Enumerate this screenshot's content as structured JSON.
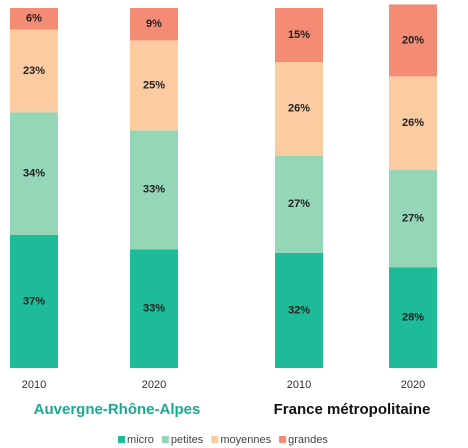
{
  "chart_data": [
    {
      "type": "stacked_bar",
      "title": "Auvergne-Rhône-Alpes",
      "title_color": "#1aaa8f",
      "categories": [
        "2010",
        "2020"
      ],
      "ylim": [
        0,
        100
      ],
      "series": [
        {
          "name": "micro",
          "color": "#1dbb98",
          "values": [
            37,
            33
          ],
          "value_labels": [
            "37%",
            "33%"
          ]
        },
        {
          "name": "petites",
          "color": "#95d5b8",
          "values": [
            34,
            33
          ],
          "value_labels": [
            "34%",
            "33%"
          ]
        },
        {
          "name": "moyennes",
          "color": "#fbcca2",
          "values": [
            23,
            25
          ],
          "value_labels": [
            "23%",
            "25%"
          ]
        },
        {
          "name": "grandes",
          "color": "#f48c75",
          "values": [
            6,
            9
          ],
          "value_labels": [
            "6%",
            "9%"
          ]
        }
      ]
    },
    {
      "type": "stacked_bar",
      "title": "France métropolitaine",
      "title_color": "#111111",
      "categories": [
        "2010",
        "2020"
      ],
      "ylim": [
        0,
        100
      ],
      "series": [
        {
          "name": "micro",
          "color": "#1dbb98",
          "values": [
            32,
            28
          ],
          "value_labels": [
            "32%",
            "28%"
          ]
        },
        {
          "name": "petites",
          "color": "#95d5b8",
          "values": [
            27,
            27
          ],
          "value_labels": [
            "27%",
            "27%"
          ]
        },
        {
          "name": "moyennes",
          "color": "#fbcca2",
          "values": [
            26,
            26
          ],
          "value_labels": [
            "26%",
            "26%"
          ]
        },
        {
          "name": "grandes",
          "color": "#f48c75",
          "values": [
            15,
            20
          ],
          "value_labels": [
            "15%",
            "20%"
          ]
        }
      ]
    }
  ]
}
